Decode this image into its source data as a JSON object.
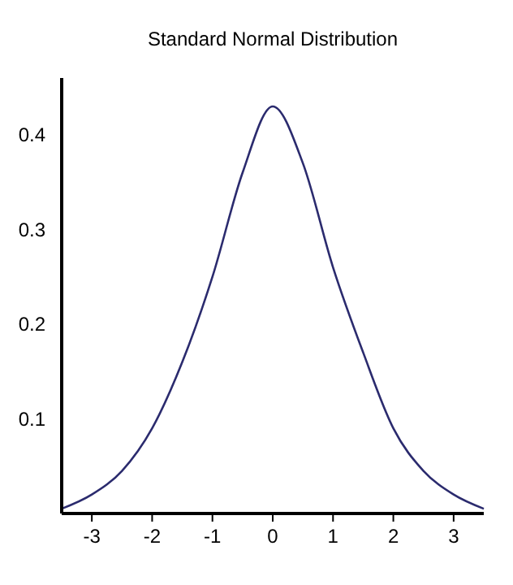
{
  "chart_data": {
    "type": "line",
    "title": "Standard Normal Distribution",
    "x": [
      -3.5,
      -3,
      -2.5,
      -2,
      -1.5,
      -1,
      -0.5,
      0,
      0.5,
      1,
      1.5,
      2,
      2.5,
      3,
      3.5
    ],
    "series": [
      {
        "color": "#2b2b6e",
        "values": [
          0.005,
          0.02,
          0.045,
          0.09,
          0.16,
          0.25,
          0.36,
          0.43,
          0.37,
          0.26,
          0.17,
          0.09,
          0.045,
          0.02,
          0.005
        ]
      }
    ],
    "xlim": [
      -3.5,
      3.5
    ],
    "ylim": [
      0,
      0.46
    ],
    "xticks": [
      -3,
      -2,
      -1,
      0,
      1,
      2,
      3
    ],
    "yticks": [
      0.1,
      0.2,
      0.3,
      0.4
    ],
    "grid": false,
    "marker": "none",
    "line_style": "solid"
  }
}
